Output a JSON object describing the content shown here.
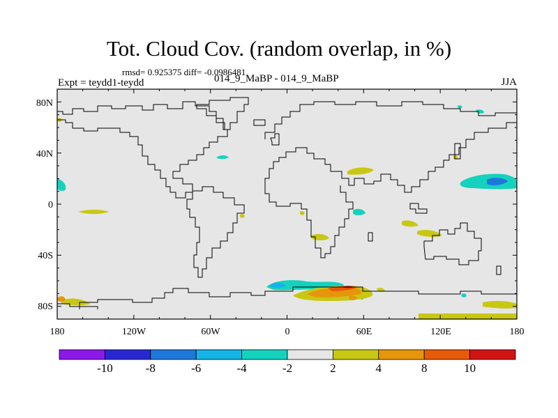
{
  "title": "Tot. Cloud Cov. (random overlap, in %)",
  "stats": "rmsd= 0.925375 diff= -0.0986481",
  "experiment": "Expt = teydd1-teydd",
  "case": "014_9_MaBP - 014_9_MaBP",
  "season": "JJA",
  "lat_labels": [
    "80N",
    "40N",
    "0",
    "40S",
    "80S"
  ],
  "lon_labels": [
    "180",
    "120W",
    "60W",
    "0",
    "60E",
    "120E",
    "180"
  ],
  "colorbar": {
    "labels": [
      "-10",
      "-8",
      "-6",
      "-4",
      "-2",
      "2",
      "4",
      "8",
      "10"
    ],
    "colors": [
      "#8c19e8",
      "#2828d2",
      "#1e78dc",
      "#14b4e6",
      "#14d2be",
      "#e6e6e6",
      "#c8c814",
      "#e6960a",
      "#e65a0a",
      "#d21414"
    ]
  },
  "colors": {
    "ocean_bg": "#e6e6e6",
    "coast": "#000000",
    "positive_2_4": "#c8c814",
    "positive_4_8": "#e6960a",
    "positive_8_10": "#e65a0a",
    "positive_gt10": "#d21414",
    "negative_2_4": "#14d2be",
    "negative_4_6": "#14b4e6",
    "negative_6_8": "#1e78dc"
  }
}
